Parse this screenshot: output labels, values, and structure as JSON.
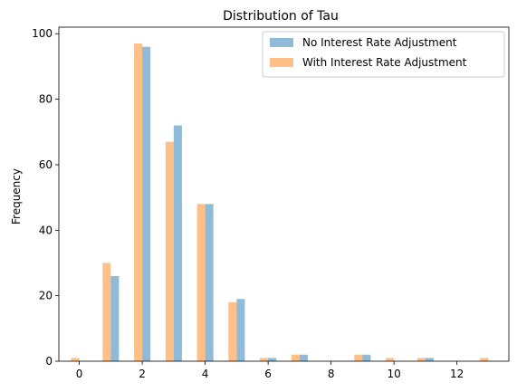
{
  "chart_data": {
    "type": "bar",
    "title": "Distribution of Tau",
    "xlabel": "",
    "ylabel": "Frequency",
    "xlim": [
      -0.65,
      13.65
    ],
    "ylim": [
      0,
      102
    ],
    "xticks": [
      0,
      2,
      4,
      6,
      8,
      10,
      12
    ],
    "yticks": [
      0,
      20,
      40,
      60,
      80,
      100
    ],
    "grid": false,
    "legend_position": "top-right",
    "bar_width": 0.26,
    "series": [
      {
        "name": "No Interest Rate Adjustment",
        "color": "#1f77b4",
        "opacity": 0.5,
        "offset": 0.13,
        "x": [
          1,
          2,
          3,
          4,
          5,
          6,
          7,
          9,
          11
        ],
        "values": [
          26,
          96,
          72,
          48,
          19,
          1,
          2,
          2,
          1
        ]
      },
      {
        "name": "With Interest Rate Adjustment",
        "color": "#ff7f0e",
        "opacity": 0.5,
        "offset": -0.13,
        "x": [
          0,
          1,
          2,
          3,
          4,
          5,
          6,
          7,
          9,
          10,
          11,
          13
        ],
        "values": [
          1,
          30,
          97,
          67,
          48,
          18,
          1,
          2,
          2,
          1,
          1,
          1
        ]
      }
    ]
  }
}
